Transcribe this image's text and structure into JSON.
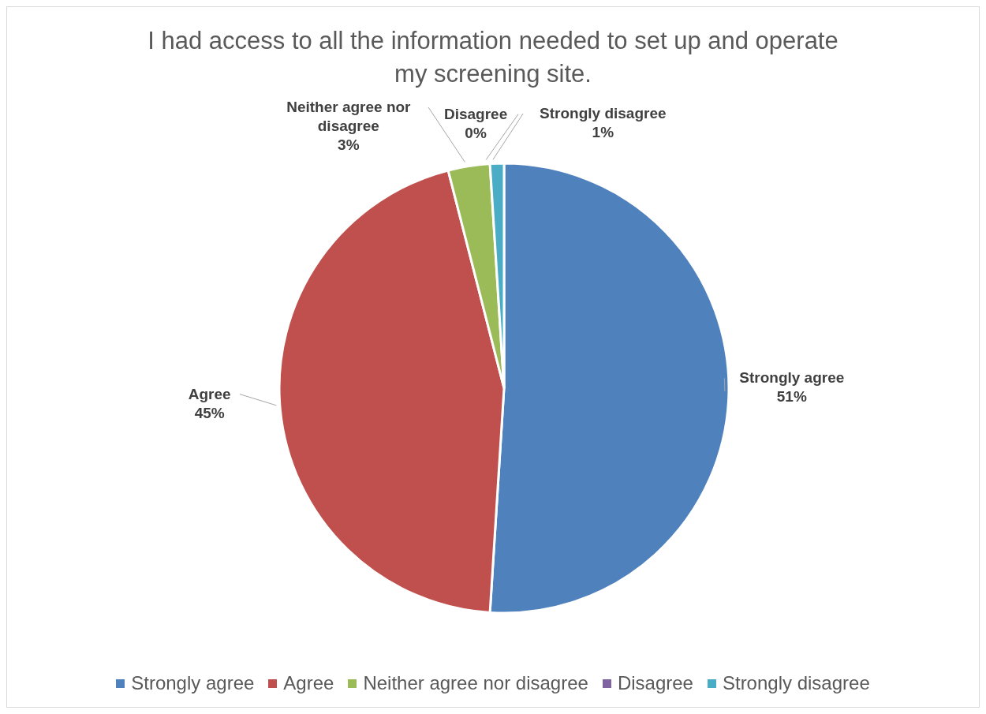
{
  "chart_data": {
    "type": "pie",
    "title": "I had access to all the information needed to set up and operate my screening site.",
    "categories": [
      "Strongly agree",
      "Agree",
      "Neither agree nor disagree",
      "Disagree",
      "Strongly disagree"
    ],
    "values": [
      51,
      45,
      3,
      0,
      1
    ],
    "colors": [
      "#4f81bd",
      "#c0504d",
      "#9bbb59",
      "#8064a2",
      "#4bacc6"
    ],
    "value_labels": [
      "51%",
      "45%",
      "3%",
      "0%",
      "1%"
    ],
    "legend": "bottom"
  }
}
